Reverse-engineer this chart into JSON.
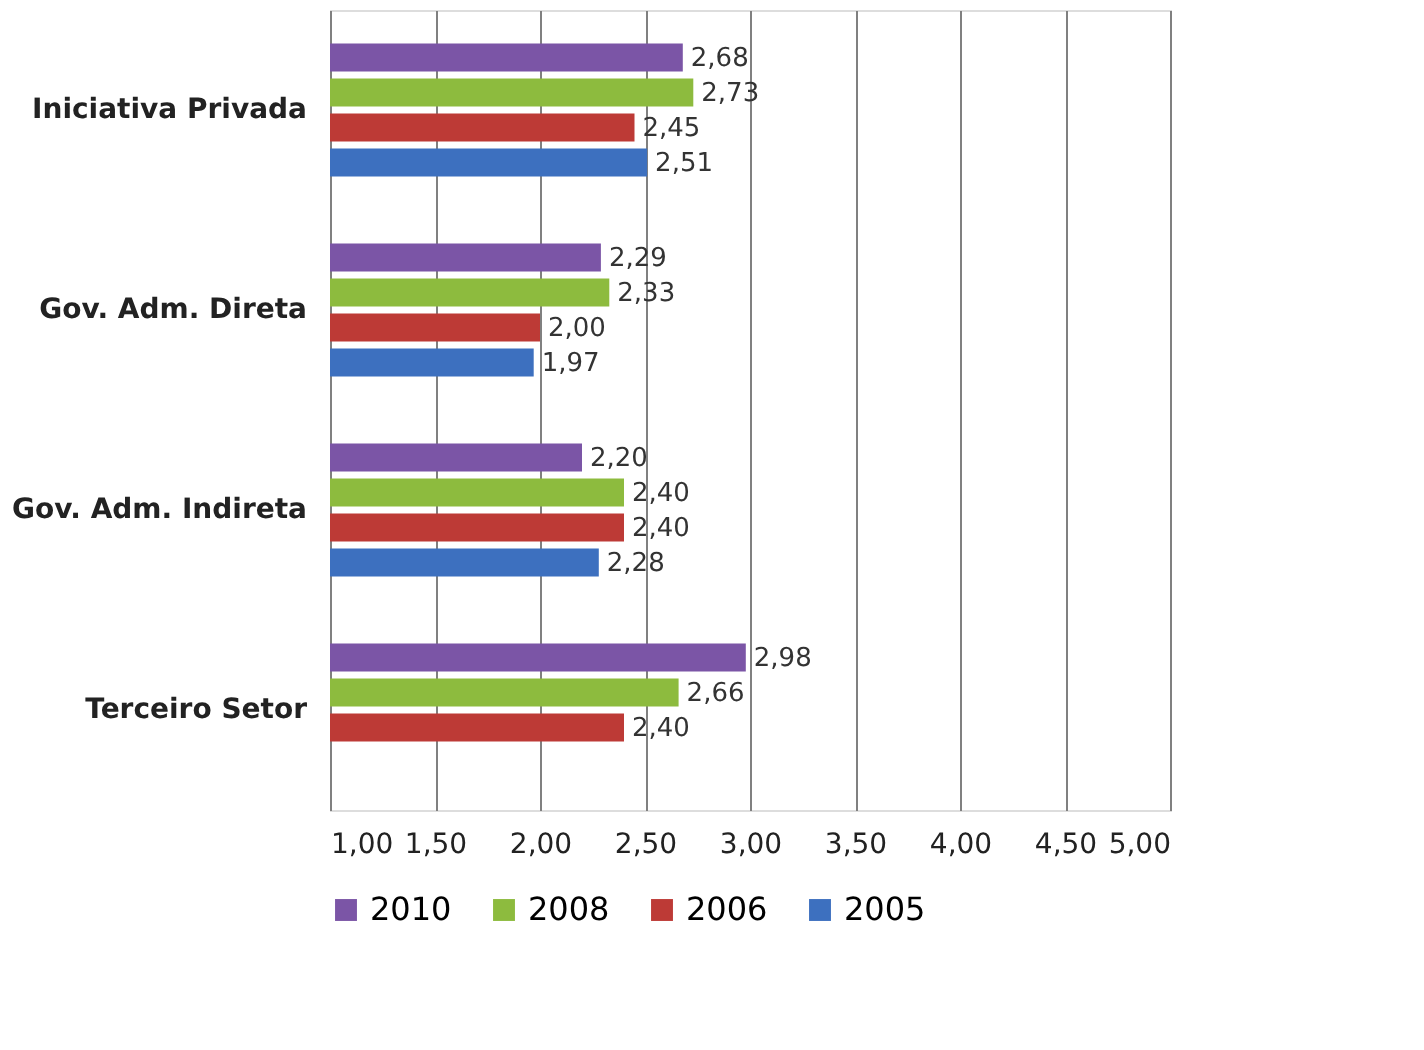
{
  "chart_data": {
    "type": "bar",
    "orientation": "horizontal",
    "categories": [
      "Iniciativa Privada",
      "Gov. Adm. Direta",
      "Gov. Adm. Indireta",
      "Terceiro Setor"
    ],
    "series": [
      {
        "name": "2010",
        "color": "#7b55a6",
        "values": [
          2.68,
          2.29,
          2.2,
          2.98
        ],
        "value_labels": [
          "2,68",
          "2,29",
          "2,20",
          "2,98"
        ]
      },
      {
        "name": "2008",
        "color": "#8dbb3e",
        "values": [
          2.73,
          2.33,
          2.4,
          2.66
        ],
        "value_labels": [
          "2,73",
          "2,33",
          "2,40",
          "2,66"
        ]
      },
      {
        "name": "2006",
        "color": "#bd3a36",
        "values": [
          2.45,
          2.0,
          2.4,
          2.4
        ],
        "value_labels": [
          "2,45",
          "2,00",
          "2,40",
          "2,40"
        ]
      },
      {
        "name": "2005",
        "color": "#3d70bf",
        "values": [
          2.51,
          1.97,
          2.28,
          null
        ],
        "value_labels": [
          "2,51",
          "1,97",
          "2,28",
          null
        ]
      }
    ],
    "xlim": [
      1,
      5
    ],
    "xticks": [
      {
        "value": 1,
        "label": "1,00"
      },
      {
        "value": 1.5,
        "label": "1,50"
      },
      {
        "value": 2,
        "label": "2,00"
      },
      {
        "value": 2.5,
        "label": "2,50"
      },
      {
        "value": 3,
        "label": "3,00"
      },
      {
        "value": 3.5,
        "label": "3,50"
      },
      {
        "value": 4,
        "label": "4,00"
      },
      {
        "value": 4.5,
        "label": "4,50"
      },
      {
        "value": 5,
        "label": "5,00"
      }
    ],
    "grid": "x",
    "legend": "bottom"
  }
}
